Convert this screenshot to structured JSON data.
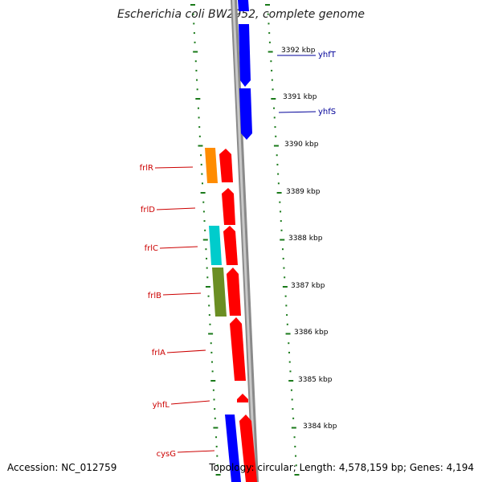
{
  "title": "Escherichia coli BW2952, complete genome",
  "accession_text": "Accession: NC_012759",
  "topology_text": "Topology: circular; Length: 4,578,159 bp; Genes: 4,194",
  "colors": {
    "backbone": "#8a8a8a",
    "tick": "#1a7a1a",
    "forward_label": "#000099",
    "reverse_label": "#cc0000",
    "blue_gene": "#0000ff",
    "red_gene": "#ff0000",
    "orange_gene": "#ff8c00",
    "cyan_gene": "#00cccc",
    "olive_gene": "#6b8e23"
  },
  "scale_labels": [
    "3392 kbp",
    "3391 kbp",
    "3390 kbp",
    "3389 kbp",
    "3388 kbp",
    "3387 kbp",
    "3386 kbp",
    "3385 kbp",
    "3384 kbp"
  ],
  "gene_labels": [
    {
      "name": "yhfT",
      "strand": "forward"
    },
    {
      "name": "yhfS",
      "strand": "forward"
    },
    {
      "name": "frlR",
      "strand": "reverse"
    },
    {
      "name": "frlD",
      "strand": "reverse"
    },
    {
      "name": "frlC",
      "strand": "reverse"
    },
    {
      "name": "frlB",
      "strand": "reverse"
    },
    {
      "name": "frlA",
      "strand": "reverse"
    },
    {
      "name": "yhfL",
      "strand": "reverse"
    },
    {
      "name": "cysG",
      "strand": "reverse"
    }
  ]
}
